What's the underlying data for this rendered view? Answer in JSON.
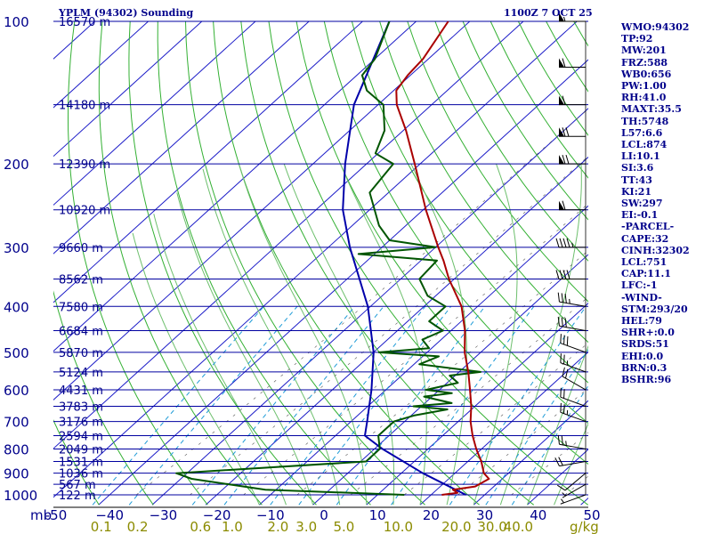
{
  "header": {
    "title": "YPLM (94302) Sounding",
    "datetime": "1100Z  7 OCT 25"
  },
  "stats": [
    "WMO:94302",
    "TP:92",
    "MW:201",
    "FRZ:588",
    "WB0:656",
    "PW:1.00",
    "RH:41.0",
    "MAXT:35.5",
    "TH:5748",
    "L57:6.6",
    "LCL:874",
    "LI:10.1",
    "SI:3.6",
    "TT:43",
    "KI:21",
    "SW:297",
    "EI:-0.1",
    "-PARCEL-",
    "CAPE:32",
    "CINH:32302",
    "LCL:751",
    "CAP:11.1",
    "LFC:-1",
    "-WIND-",
    "STM:293/20",
    "HEL:79",
    "SHR+:0.0",
    "SRDS:51",
    "EHI:0.0",
    "BRN:0.3",
    "BSHR:96"
  ],
  "colors": {
    "isobar": "#0000a0",
    "isotherm": "#1c1cc8",
    "dry_adiabat": "#33b033",
    "moist_adiabat": "#6dbf6d",
    "mixing_ratio": "#1e9bd7",
    "temperature": "#aa0000",
    "dewpoint": "#005500",
    "parcel": "#0000aa",
    "labels": "#00008b",
    "mixing_labels": "#8b8b00"
  },
  "chart_data": {
    "type": "skew-t",
    "y_unit_label": "mb",
    "x_unit_label": "g/kg",
    "pressure_levels": [
      {
        "p": 100,
        "label": "100",
        "height": "16570 m"
      },
      {
        "p": 150,
        "label": "",
        "height": "14180 m"
      },
      {
        "p": 200,
        "label": "200",
        "height": "12390 m"
      },
      {
        "p": 250,
        "label": "",
        "height": "10920 m"
      },
      {
        "p": 300,
        "label": "300",
        "height": "9660 m"
      },
      {
        "p": 350,
        "label": "",
        "height": "8562 m"
      },
      {
        "p": 400,
        "label": "400",
        "height": "7580 m"
      },
      {
        "p": 450,
        "label": "",
        "height": "6684 m"
      },
      {
        "p": 500,
        "label": "500",
        "height": "5870 m"
      },
      {
        "p": 550,
        "label": "",
        "height": "5124 m"
      },
      {
        "p": 600,
        "label": "600",
        "height": "4431 m"
      },
      {
        "p": 650,
        "label": "",
        "height": "3783 m"
      },
      {
        "p": 700,
        "label": "700",
        "height": "3176 m"
      },
      {
        "p": 750,
        "label": "",
        "height": "2594 m"
      },
      {
        "p": 800,
        "label": "800",
        "height": "2049 m"
      },
      {
        "p": 850,
        "label": "",
        "height": "1531 m"
      },
      {
        "p": 900,
        "label": "900",
        "height": "1036 m"
      },
      {
        "p": 950,
        "label": "",
        "height": "567 m"
      },
      {
        "p": 1000,
        "label": "1000",
        "height": "122 m"
      }
    ],
    "temperature_ticks": [
      -50,
      -40,
      -30,
      -20,
      -10,
      0,
      10,
      20,
      30,
      40,
      50
    ],
    "temperature_tick_labels": [
      "-50",
      "−40",
      "−30",
      "−20",
      "−10",
      "0",
      "10",
      "20",
      "30",
      "40",
      "50"
    ],
    "mixing_ratio_ticks": [
      {
        "w": 0.1,
        "label": "0.1"
      },
      {
        "w": 0.2,
        "label": "0.2"
      },
      {
        "w": 0.6,
        "label": "0.6"
      },
      {
        "w": 1.0,
        "label": "1.0"
      },
      {
        "w": 2.0,
        "label": "2.0"
      },
      {
        "w": 3.0,
        "label": "3.0"
      },
      {
        "w": 5.0,
        "label": "5.0"
      },
      {
        "w": 10.0,
        "label": "10.0"
      },
      {
        "w": 20.0,
        "label": "20.0"
      },
      {
        "w": 30.0,
        "label": "30.0"
      },
      {
        "w": 40.0,
        "label": "40.0"
      }
    ],
    "temperature_profile": [
      {
        "p": 1000,
        "t": 22.0
      },
      {
        "p": 990,
        "t": 24.5
      },
      {
        "p": 975,
        "t": 23.0
      },
      {
        "p": 960,
        "t": 26.5
      },
      {
        "p": 925,
        "t": 27.5
      },
      {
        "p": 900,
        "t": 25.4
      },
      {
        "p": 850,
        "t": 22.5
      },
      {
        "p": 800,
        "t": 19.0
      },
      {
        "p": 750,
        "t": 15.6
      },
      {
        "p": 700,
        "t": 12.3
      },
      {
        "p": 650,
        "t": 9.3
      },
      {
        "p": 600,
        "t": 5.7
      },
      {
        "p": 550,
        "t": 1.7
      },
      {
        "p": 500,
        "t": -3.0
      },
      {
        "p": 450,
        "t": -7.4
      },
      {
        "p": 400,
        "t": -13.0
      },
      {
        "p": 350,
        "t": -21.0
      },
      {
        "p": 320,
        "t": -25.8
      },
      {
        "p": 300,
        "t": -29.5
      },
      {
        "p": 250,
        "t": -39.5
      },
      {
        "p": 200,
        "t": -51.0
      },
      {
        "p": 170,
        "t": -59.5
      },
      {
        "p": 150,
        "t": -66.5
      },
      {
        "p": 140,
        "t": -69.5
      },
      {
        "p": 130,
        "t": -70.5
      },
      {
        "p": 120,
        "t": -71.0
      },
      {
        "p": 100,
        "t": -74.0
      }
    ],
    "dewpoint_profile": [
      {
        "p": 1000,
        "td": 15.0
      },
      {
        "p": 975,
        "td": -12.0
      },
      {
        "p": 925,
        "td": -28.0
      },
      {
        "p": 900,
        "td": -32.0
      },
      {
        "p": 850,
        "td": 1.0
      },
      {
        "p": 800,
        "td": 1.0
      },
      {
        "p": 750,
        "td": -2.0
      },
      {
        "p": 700,
        "td": -2.0
      },
      {
        "p": 680,
        "td": 0.5
      },
      {
        "p": 660,
        "td": 5.5
      },
      {
        "p": 650,
        "td": -1.5
      },
      {
        "p": 640,
        "td": 5.0
      },
      {
        "p": 620,
        "td": -1.5
      },
      {
        "p": 610,
        "td": 3.0
      },
      {
        "p": 600,
        "td": -2.5
      },
      {
        "p": 580,
        "td": 2.0
      },
      {
        "p": 560,
        "td": -1.0
      },
      {
        "p": 550,
        "td": 4.0
      },
      {
        "p": 530,
        "td": -9.0
      },
      {
        "p": 510,
        "td": -7.0
      },
      {
        "p": 500,
        "td": -19.0
      },
      {
        "p": 490,
        "td": -10.5
      },
      {
        "p": 470,
        "td": -13.5
      },
      {
        "p": 450,
        "td": -11.5
      },
      {
        "p": 430,
        "td": -16.0
      },
      {
        "p": 400,
        "td": -16.0
      },
      {
        "p": 380,
        "td": -21.5
      },
      {
        "p": 350,
        "td": -26.5
      },
      {
        "p": 320,
        "td": -27.0
      },
      {
        "p": 310,
        "td": -43.0
      },
      {
        "p": 300,
        "td": -30.0
      },
      {
        "p": 290,
        "td": -40.0
      },
      {
        "p": 270,
        "td": -45.0
      },
      {
        "p": 230,
        "td": -53.5
      },
      {
        "p": 200,
        "td": -55.0
      },
      {
        "p": 190,
        "td": -60.5
      },
      {
        "p": 170,
        "td": -63.5
      },
      {
        "p": 150,
        "td": -69.0
      },
      {
        "p": 140,
        "td": -75.0
      },
      {
        "p": 130,
        "td": -79.0
      },
      {
        "p": 120,
        "td": -80.0
      },
      {
        "p": 100,
        "td": -85.0
      }
    ],
    "parcel_profile": [
      {
        "p": 1000,
        "t": 26.5
      },
      {
        "p": 900,
        "t": 14.0
      },
      {
        "p": 800,
        "t": 1.5
      },
      {
        "p": 750,
        "t": -4.5
      },
      {
        "p": 700,
        "t": -7.0
      },
      {
        "p": 600,
        "t": -12.7
      },
      {
        "p": 500,
        "t": -20.0
      },
      {
        "p": 400,
        "t": -30.5
      },
      {
        "p": 300,
        "t": -46.0
      },
      {
        "p": 250,
        "t": -55.0
      },
      {
        "p": 200,
        "t": -64.0
      },
      {
        "p": 150,
        "t": -74.5
      },
      {
        "p": 100,
        "t": -85.0
      }
    ],
    "wind_barbs": [
      {
        "p": 1000,
        "dir": 250,
        "spd": 5
      },
      {
        "p": 950,
        "dir": 240,
        "spd": 5
      },
      {
        "p": 900,
        "dir": 230,
        "spd": 10
      },
      {
        "p": 850,
        "dir": 260,
        "spd": 20
      },
      {
        "p": 800,
        "dir": 280,
        "spd": 25
      },
      {
        "p": 700,
        "dir": 290,
        "spd": 25
      },
      {
        "p": 650,
        "dir": 290,
        "spd": 20
      },
      {
        "p": 600,
        "dir": 300,
        "spd": 20
      },
      {
        "p": 550,
        "dir": 290,
        "spd": 25
      },
      {
        "p": 500,
        "dir": 290,
        "spd": 30
      },
      {
        "p": 450,
        "dir": 280,
        "spd": 30
      },
      {
        "p": 400,
        "dir": 280,
        "spd": 35
      },
      {
        "p": 350,
        "dir": 270,
        "spd": 40
      },
      {
        "p": 300,
        "dir": 270,
        "spd": 45
      },
      {
        "p": 250,
        "dir": 270,
        "spd": 60
      },
      {
        "p": 200,
        "dir": 270,
        "spd": 70
      },
      {
        "p": 175,
        "dir": 270,
        "spd": 70
      },
      {
        "p": 150,
        "dir": 270,
        "spd": 60
      },
      {
        "p": 125,
        "dir": 270,
        "spd": 60
      },
      {
        "p": 100,
        "dir": 270,
        "spd": 55
      }
    ]
  }
}
